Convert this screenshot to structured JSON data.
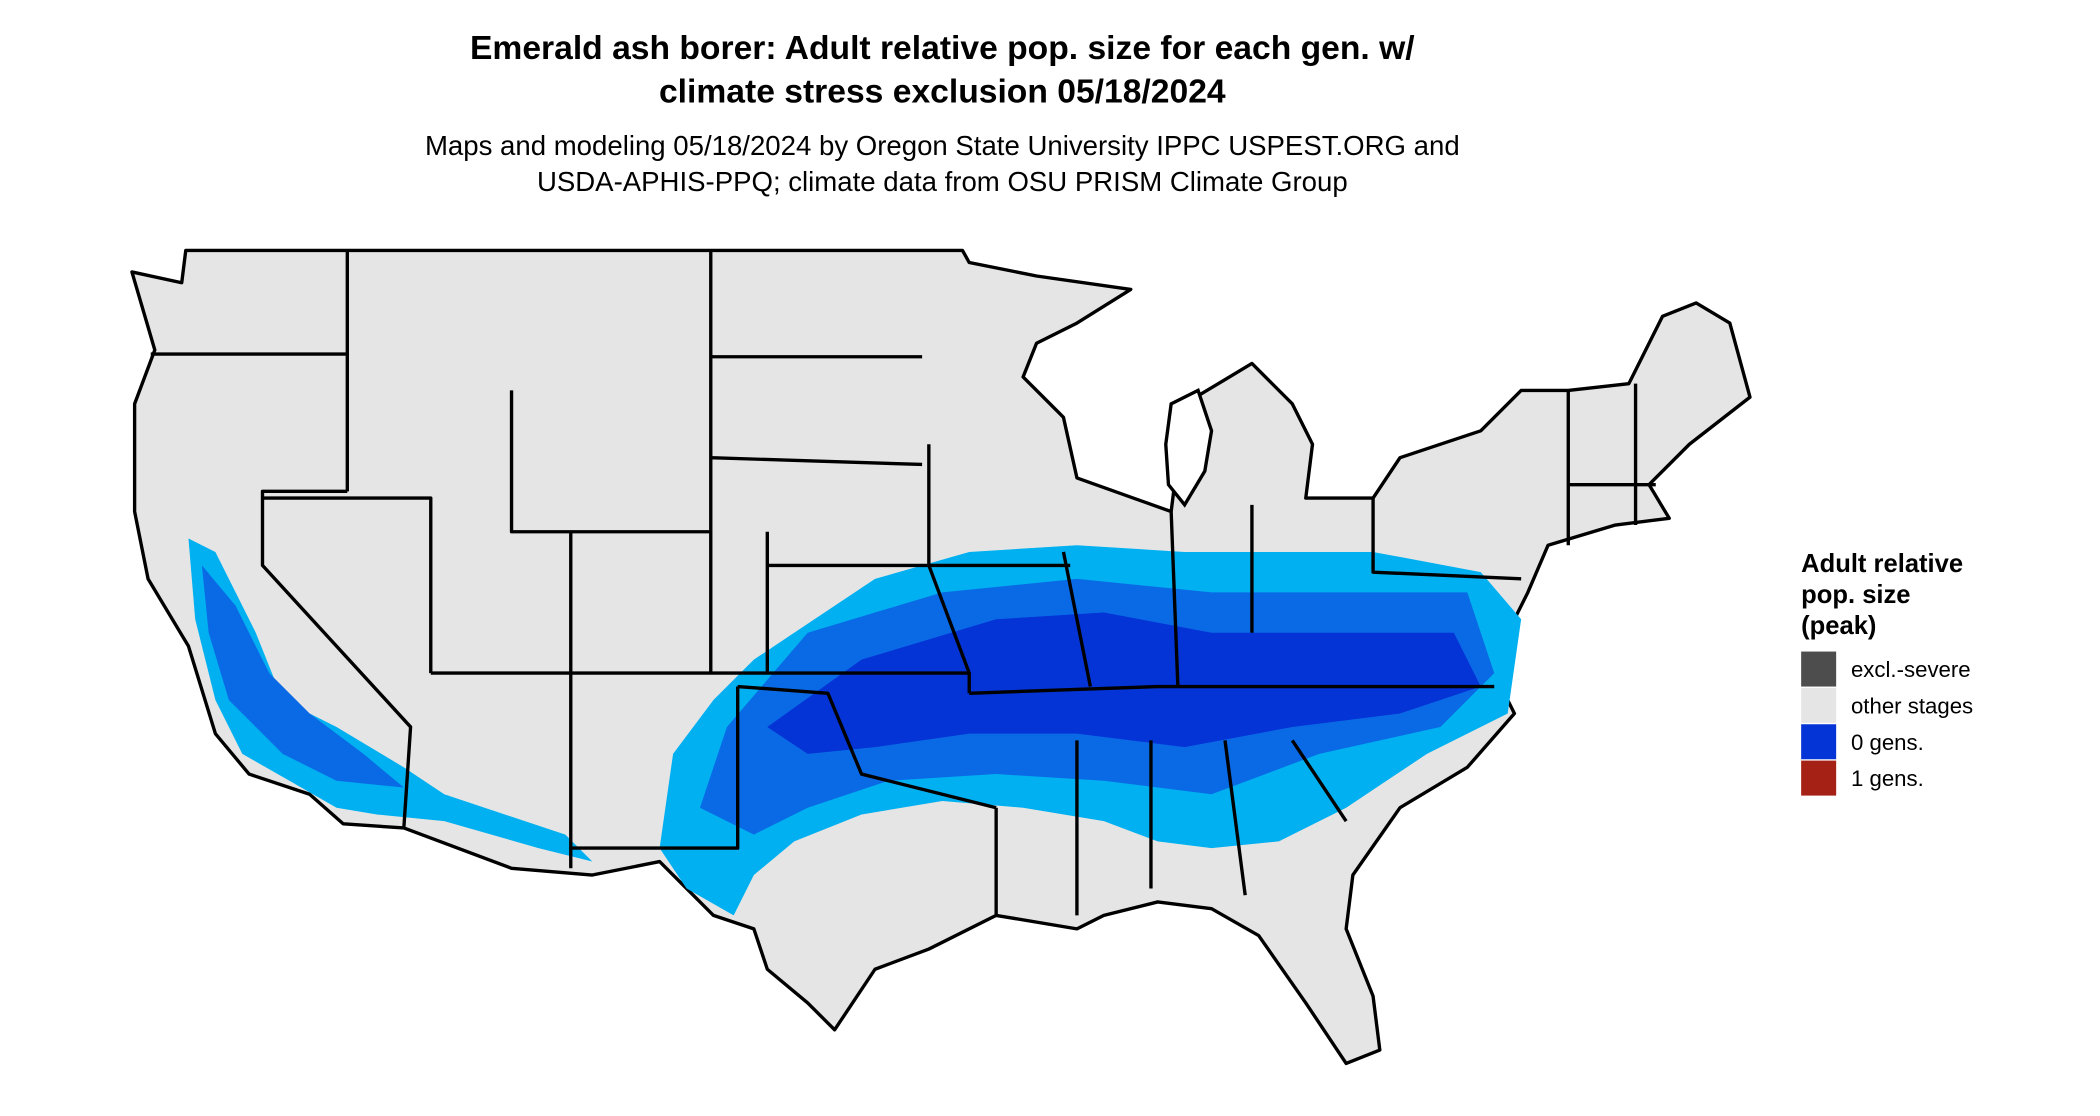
{
  "title": [
    "Emerald ash borer: Adult relative pop. size for each gen. w/",
    "climate stress exclusion 05/18/2024"
  ],
  "subtitle": [
    "Maps and modeling 05/18/2024 by Oregon State University IPPC USPEST.ORG and",
    "USDA-APHIS-PPQ; climate data from OSU PRISM Climate Group"
  ],
  "legend": {
    "title": [
      "Adult relative",
      "pop. size",
      "(peak)"
    ],
    "items": [
      {
        "label": "excl.-severe",
        "color": "#4d4d4d"
      },
      {
        "label": "other stages",
        "color": "#e5e5e5"
      },
      {
        "label": "0 gens.",
        "color": "#0433d6"
      },
      {
        "label": "1 gens.",
        "color": "#a52015"
      }
    ]
  }
}
